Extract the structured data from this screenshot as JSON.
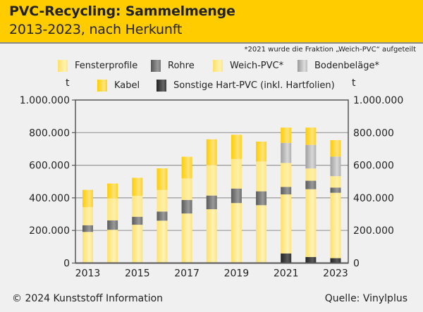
{
  "header": {
    "title": "PVC-Recycling: Sammelmenge",
    "subtitle": "2013-2023, nach Herkunft"
  },
  "note": "*2021 wurde die Fraktion „Weich-PVC“ aufgeteilt",
  "legend": [
    {
      "key": "fenster",
      "label": "Fensterprofile",
      "color": "#ffe680"
    },
    {
      "key": "rohre",
      "label": "Rohre",
      "color": "#7a7a7a"
    },
    {
      "key": "weich",
      "label": "Weich-PVC*",
      "color": "#ffe680"
    },
    {
      "key": "boden",
      "label": "Bodenbeläge*",
      "color": "#b8b8b8"
    },
    {
      "key": "kabel",
      "label": "Kabel",
      "color": "#ffd21a"
    },
    {
      "key": "sonstige",
      "label": "Sonstige Hart-PVC (inkl. Hartfolien)",
      "color": "#3a3a3a"
    }
  ],
  "units": {
    "left": "t",
    "right": "t"
  },
  "footer": {
    "copyright": "© 2024 Kunststoff Information",
    "source": "Quelle: Vinylplus"
  },
  "chart_data": {
    "type": "bar",
    "stacked": true,
    "title": "PVC-Recycling: Sammelmenge",
    "subtitle": "2013-2023, nach Herkunft",
    "xlabel": "",
    "ylabel": "t",
    "ylim": [
      0,
      1000000
    ],
    "yticks": [
      0,
      200000,
      400000,
      600000,
      800000,
      1000000
    ],
    "ytick_labels": [
      "0",
      "200.000",
      "400.000",
      "600.000",
      "800.000",
      "1.000.000"
    ],
    "categories": [
      "2013",
      "2014",
      "2015",
      "2016",
      "2017",
      "2018",
      "2019",
      "2020",
      "2021",
      "2022",
      "2023"
    ],
    "xtick_labels": [
      "2013",
      "",
      "2015",
      "",
      "2017",
      "",
      "2019",
      "",
      "2021",
      "",
      "2023"
    ],
    "grid": true,
    "legend_position": "top",
    "stack_order": [
      "sonstige",
      "fenster",
      "rohre",
      "weich",
      "boden",
      "kabel"
    ],
    "series": [
      {
        "key": "sonstige",
        "name": "Sonstige Hart-PVC (inkl. Hartfolien)",
        "values": [
          0,
          0,
          0,
          0,
          0,
          0,
          0,
          0,
          59000,
          37000,
          30000
        ]
      },
      {
        "key": "fenster",
        "name": "Fensterprofile",
        "values": [
          191000,
          204000,
          235000,
          260000,
          304000,
          330000,
          368000,
          355000,
          362000,
          416000,
          401000
        ]
      },
      {
        "key": "rohre",
        "name": "Rohre",
        "values": [
          41000,
          58000,
          49000,
          56000,
          83000,
          84000,
          89000,
          85000,
          46000,
          52000,
          32000
        ]
      },
      {
        "key": "weich",
        "name": "Weich-PVC*",
        "values": [
          111000,
          134000,
          128000,
          132000,
          132000,
          187000,
          181000,
          183000,
          147000,
          75000,
          70000
        ]
      },
      {
        "key": "boden",
        "name": "Bodenbeläge*",
        "values": [
          0,
          0,
          0,
          0,
          0,
          0,
          0,
          0,
          123000,
          145000,
          120000
        ]
      },
      {
        "key": "kabel",
        "name": "Kabel",
        "values": [
          106000,
          92000,
          111000,
          133000,
          133000,
          158000,
          149000,
          122000,
          94000,
          106000,
          101000
        ]
      }
    ]
  }
}
